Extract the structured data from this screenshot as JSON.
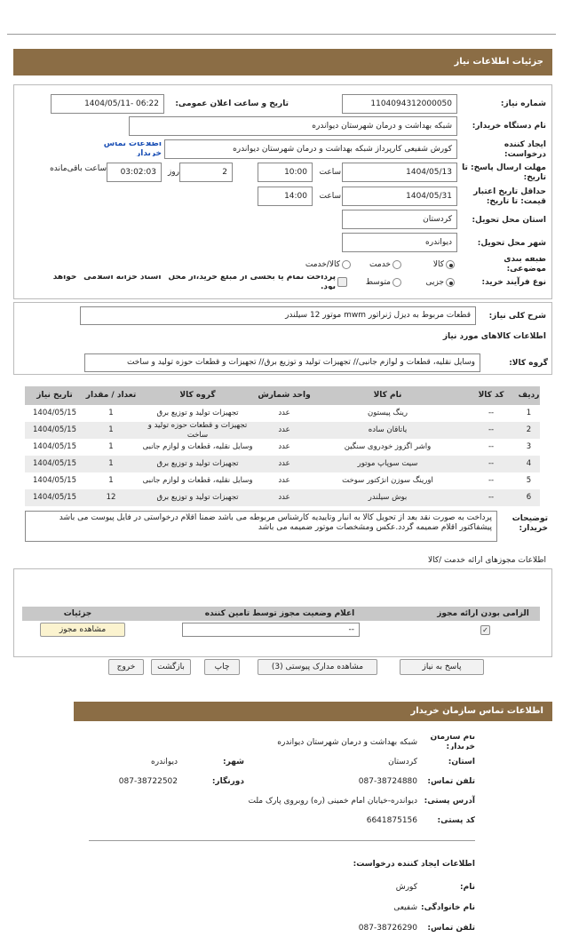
{
  "header": {
    "title": "جزئیات اطلاعات نیاز"
  },
  "fields": {
    "need_number": {
      "label": "شماره نیاز:",
      "value": "1104094312000050"
    },
    "announce_date": {
      "label": "تاریخ و ساعت اعلان عمومی:",
      "value": "1404/05/11- 06:22"
    },
    "buyer": {
      "label": "نام دستگاه خریدار:",
      "value": "شبکه بهداشت و درمان شهرستان دیواندره"
    },
    "creator": {
      "label": "ایجاد کننده درخواست:",
      "value": "کورش شفیعی کارپرداز شبکه بهداشت و درمان شهرستان دیواندره",
      "link": "اطلاعات تماس خریدار"
    },
    "deadline": {
      "label": "مهلت ارسال پاسخ: تا تاریخ:",
      "date": "1404/05/13",
      "time_label": "ساعت",
      "time": "10:00",
      "days": "2",
      "days_label": "روز",
      "remaining": "03:02:03",
      "remaining_label": "ساعت باقی‌مانده"
    },
    "validity": {
      "label": "حداقل تاریخ اعتبار قیمت: تا تاریخ:",
      "date": "1404/05/31",
      "time_label": "ساعت",
      "time": "14:00"
    },
    "province": {
      "label": "استان محل تحویل:",
      "value": "کردستان"
    },
    "city": {
      "label": "شهر محل تحویل:",
      "value": "دیواندره"
    },
    "category": {
      "label": "طبقه بندی موضوعی:",
      "options": [
        "کالا",
        "خدمت",
        "کالا/خدمت"
      ]
    },
    "process": {
      "label": "نوع فرآیند خرید:",
      "options": [
        "جزیی",
        "متوسط"
      ],
      "treasury": "پرداخت تمام یا بخشی از مبلغ خرید،از محل \"اسناد خزانه اسلامی\" خواهد بود."
    }
  },
  "need": {
    "label": "شرح کلی نیاز:",
    "value": "قطعات مربوط به دیزل ژنراتور mwm موتور 12 سیلندر",
    "goods_title": "اطلاعات کالاهای مورد نیاز",
    "group_label": "گروه کالا:",
    "group": "وسایل نقلیه، قطعات و لوازم جانبی// تجهیزات تولید و توزیع برق// تجهیزات و قطعات حوزه تولید و ساخت"
  },
  "table": {
    "headers": [
      "ردیف",
      "کد کالا",
      "نام کالا",
      "واحد شمارش",
      "گروه کالا",
      "تعداد / مقدار",
      "تاریخ نیاز"
    ],
    "rows": [
      [
        "1",
        "--",
        "رینگ پیستون",
        "عدد",
        "تجهیزات تولید و توزیع برق",
        "1",
        "1404/05/15"
      ],
      [
        "2",
        "--",
        "یاتاقان ساده",
        "عدد",
        "تجهیزات و قطعات حوزه تولید و ساخت",
        "1",
        "1404/05/15"
      ],
      [
        "3",
        "--",
        "واشر اگزوز خودروی سنگین",
        "عدد",
        "وسایل نقلیه، قطعات و لوازم جانبی",
        "1",
        "1404/05/15"
      ],
      [
        "4",
        "--",
        "سیت سوپاپ موتور",
        "عدد",
        "تجهیزات تولید و توزیع برق",
        "1",
        "1404/05/15"
      ],
      [
        "5",
        "--",
        "اورینگ سوزن انژکتور سوخت",
        "عدد",
        "وسایل نقلیه، قطعات و لوازم جانبی",
        "1",
        "1404/05/15"
      ],
      [
        "6",
        "--",
        "بوش سیلندر",
        "عدد",
        "تجهیزات تولید و توزیع برق",
        "12",
        "1404/05/15"
      ]
    ]
  },
  "notes": {
    "label": "توضیحات خریدار:",
    "value": "پرداخت به صورت نقد بعد از تحویل کالا به انبار وتاییدیه کارشناس مربوطه می باشد ضمنا اقلام درخواستی در فایل پیوست می باشد پیشفاکتور اقلام ضمیمه گردد.عکس ومشخصات موتور ضمیمه می باشد"
  },
  "permits": {
    "title": "اطلاعات مجوزهای ارائه خدمت /کالا",
    "headers": [
      "الزامی بودن ارائه مجوز",
      "اعلام وضعیت مجوز توسط تامین کننده",
      "جزئیات"
    ],
    "status": "--",
    "view": "مشاهده مجوز"
  },
  "buttons": [
    "پاسخ به نیاز",
    "مشاهده مدارک پیوستی (3)",
    "چاپ",
    "بازگشت",
    "خروج"
  ],
  "contact": {
    "title": "اطلاعات تماس سازمان خریدار",
    "org_label": "نام سازمان خریدار:",
    "org": "شبکه بهداشت و درمان شهرستان دیواندره",
    "province_label": "استان:",
    "province": "کردستان",
    "city_label": "شهر:",
    "city": "دیواندره",
    "phone_label": "تلفن تماس:",
    "phone": "087-38724880",
    "fax_label": "دورنگار:",
    "fax": "087-38722502",
    "address_label": "آدرس پستی:",
    "address": "دیواندره-خیابان امام خمینی (ره) روبروی پارک ملت",
    "postal_label": "کد پستی:",
    "postal": "6641875156",
    "creator_title": "اطلاعات ایجاد کننده درخواست:",
    "name_label": "نام:",
    "name": "کورش",
    "family_label": "نام خانوادگی:",
    "family": "شفیعی",
    "creator_phone_label": "تلفن تماس:",
    "creator_phone": "087-38726290"
  }
}
